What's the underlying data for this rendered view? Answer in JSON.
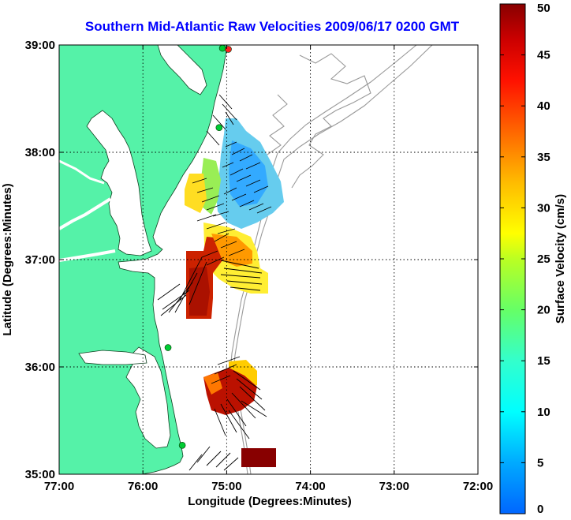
{
  "chart_data": {
    "type": "vector-field-map",
    "title": "Southern Mid-Atlantic Raw Velocities 2009/06/17 0200 GMT",
    "xlabel": "Longitude (Degrees:Minutes)",
    "ylabel": "Latitude (Degrees:Minutes)",
    "xlim": [
      -77,
      -72
    ],
    "ylim": [
      35,
      39
    ],
    "x_ticks": [
      -77,
      -76,
      -75,
      -74,
      -73,
      -72
    ],
    "x_tick_labels": [
      "77:00",
      "76:00",
      "75:00",
      "74:00",
      "73:00",
      "72:00"
    ],
    "y_ticks": [
      35,
      36,
      37,
      38,
      39
    ],
    "y_tick_labels": [
      "35:00",
      "36:00",
      "37:00",
      "38:00",
      "39:00"
    ],
    "grid": "dotted",
    "colorbar": {
      "label": "Surface Velocity (cm/s)",
      "min": 0,
      "max": 50,
      "ticks": [
        0,
        5,
        10,
        15,
        20,
        25,
        30,
        35,
        40,
        45,
        50
      ],
      "tick_labels": [
        "0",
        "5",
        "10",
        "15",
        "20",
        "25",
        "30",
        "35",
        "40",
        "45",
        "50"
      ]
    },
    "land_color": "#55f2a8",
    "stations": [
      {
        "lon": -75.05,
        "lat": 38.97,
        "color": "#00cc33"
      },
      {
        "lon": -74.98,
        "lat": 38.96,
        "color": "#ff2222"
      },
      {
        "lon": -75.09,
        "lat": 38.23,
        "color": "#00cc33"
      },
      {
        "lon": -75.7,
        "lat": 36.18,
        "color": "#00cc33"
      },
      {
        "lon": -75.53,
        "lat": 35.27,
        "color": "#00cc33"
      }
    ],
    "velocity_regions": [
      {
        "name": "delmarva-shelf",
        "points": [
          {
            "lon": -74.85,
            "lat": 37.7,
            "speed": 8,
            "dir": 250
          },
          {
            "lon": -74.9,
            "lat": 37.9,
            "speed": 10,
            "dir": 200
          },
          {
            "lon": -74.75,
            "lat": 37.5,
            "speed": 9,
            "dir": 240
          },
          {
            "lon": -75.0,
            "lat": 37.55,
            "speed": 12,
            "dir": 225
          },
          {
            "lon": -74.95,
            "lat": 37.35,
            "speed": 20,
            "dir": 215
          },
          {
            "lon": -75.2,
            "lat": 37.6,
            "speed": 22,
            "dir": 200
          },
          {
            "lon": -75.3,
            "lat": 37.85,
            "speed": 25,
            "dir": 210
          },
          {
            "lon": -75.05,
            "lat": 38.05,
            "speed": 18,
            "dir": 180
          }
        ]
      },
      {
        "name": "chesapeake-mouth",
        "points": [
          {
            "lon": -74.95,
            "lat": 36.95,
            "speed": 35,
            "dir": 250
          },
          {
            "lon": -74.8,
            "lat": 36.85,
            "speed": 30,
            "dir": 255
          },
          {
            "lon": -75.2,
            "lat": 36.9,
            "speed": 45,
            "dir": 200
          },
          {
            "lon": -75.3,
            "lat": 36.65,
            "speed": 48,
            "dir": 160
          },
          {
            "lon": -75.4,
            "lat": 36.55,
            "speed": 46,
            "dir": 140
          }
        ]
      },
      {
        "name": "hatteras",
        "points": [
          {
            "lon": -74.9,
            "lat": 35.95,
            "speed": 38,
            "dir": 260
          },
          {
            "lon": -75.05,
            "lat": 35.8,
            "speed": 46,
            "dir": 120
          },
          {
            "lon": -74.95,
            "lat": 35.6,
            "speed": 45,
            "dir": 150
          },
          {
            "lon": -75.1,
            "lat": 35.5,
            "speed": 44,
            "dir": 170
          }
        ]
      },
      {
        "name": "hatteras-south",
        "points": [
          {
            "lon": -74.75,
            "lat": 35.08,
            "speed": 50,
            "dir": 90
          }
        ]
      }
    ]
  }
}
